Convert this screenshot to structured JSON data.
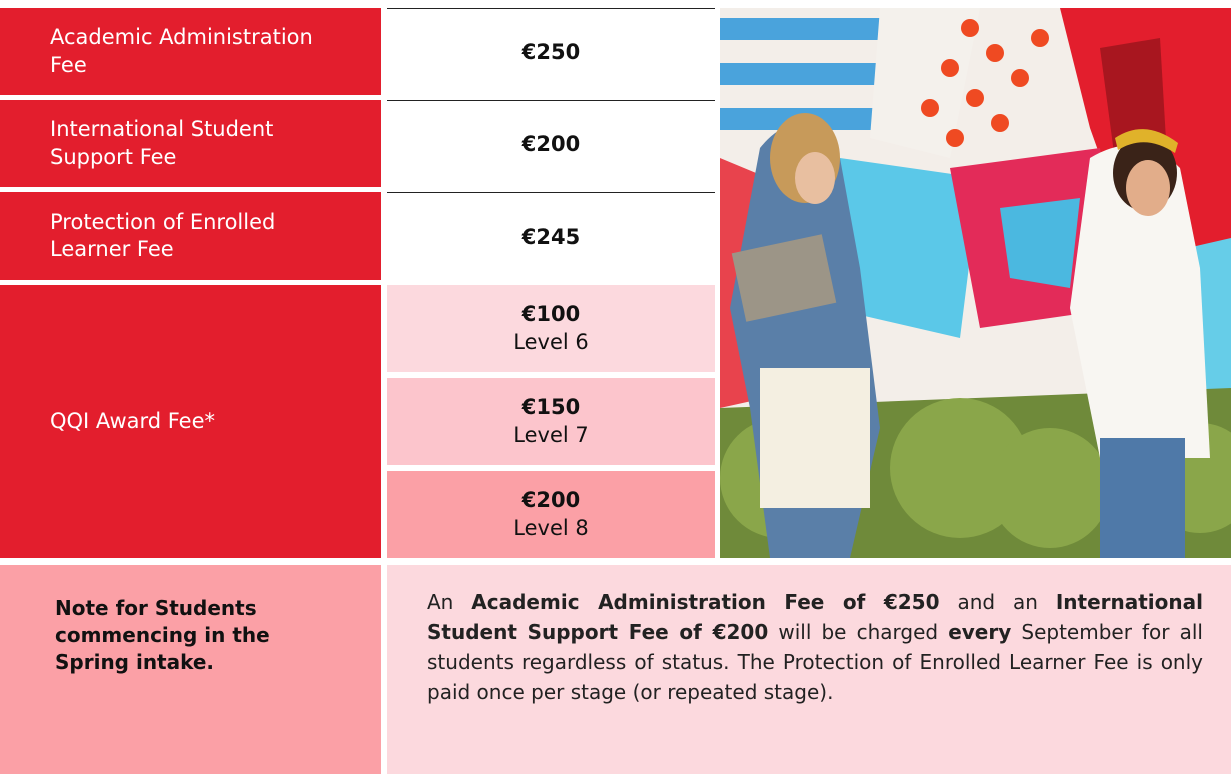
{
  "fees": [
    {
      "name": "Academic Administration Fee",
      "amount": "€250"
    },
    {
      "name": "International Student Support Fee",
      "amount": "€200"
    },
    {
      "name": "Protection of Enrolled Learner Fee",
      "amount": "€245"
    }
  ],
  "qqi": {
    "name": "QQI Award Fee*",
    "levels": [
      {
        "amount": "€100",
        "level": "Level 6"
      },
      {
        "amount": "€150",
        "level": "Level 7"
      },
      {
        "amount": "€200",
        "level": "Level 8"
      }
    ]
  },
  "note": {
    "title": "Note for Students commencing in the Spring intake.",
    "text": [
      {
        "text": "An ",
        "bold": false
      },
      {
        "text": "Academic Administration Fee of €250",
        "bold": true
      },
      {
        "text": " and an ",
        "bold": false
      },
      {
        "text": "International Student Support Fee of €200",
        "bold": true
      },
      {
        "text": " will be charged ",
        "bold": false
      },
      {
        "text": "every",
        "bold": true
      },
      {
        "text": " September for all students regardless of status. The Protection of Enrolled Learner Fee is only paid once per stage (or repeated stage).",
        "bold": false
      }
    ]
  }
}
